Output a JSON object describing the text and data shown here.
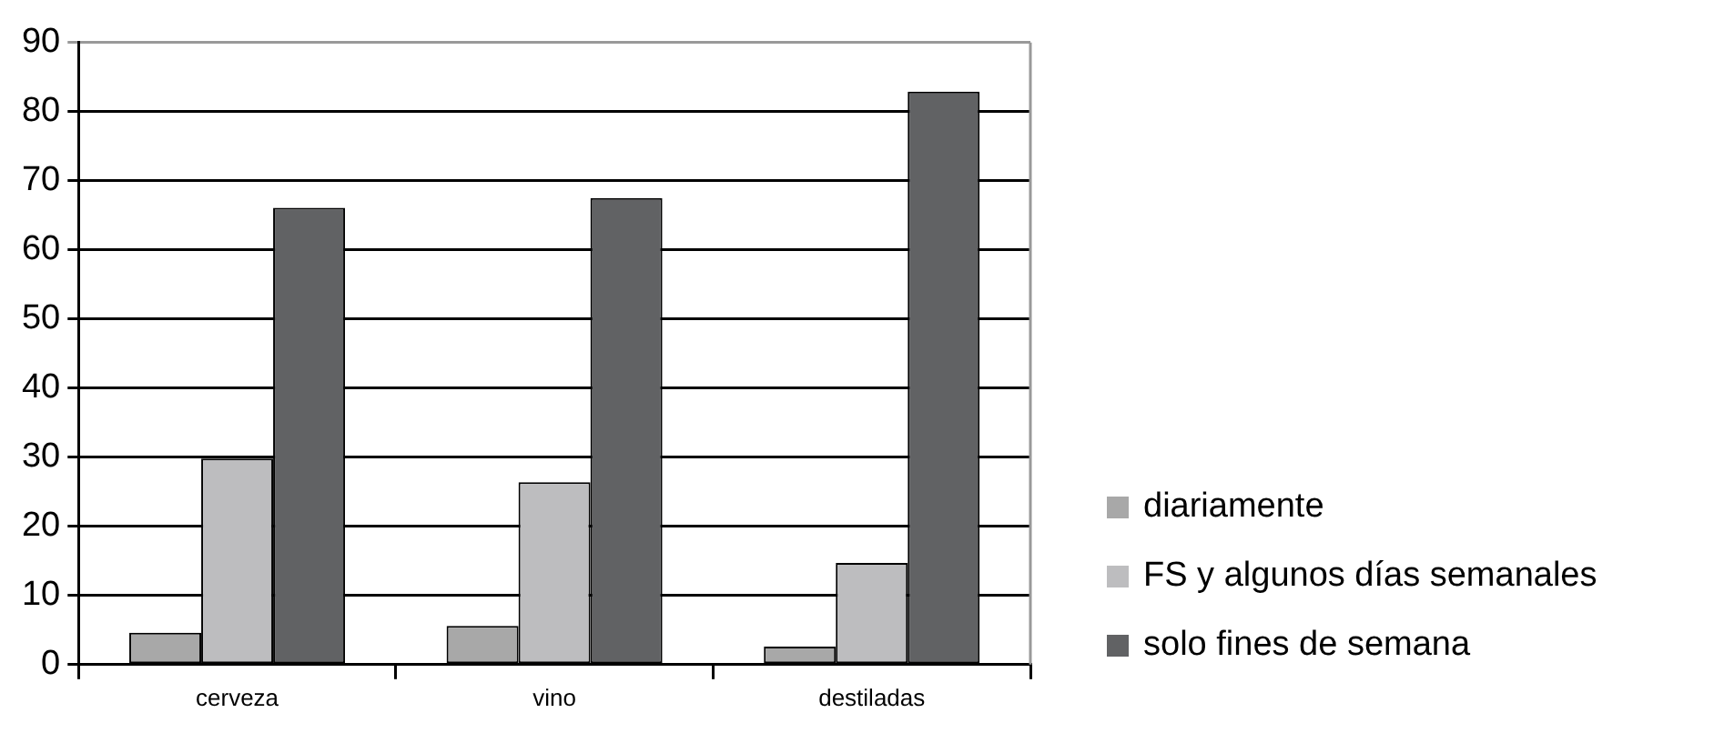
{
  "chart_data": {
    "type": "bar",
    "categories": [
      "cerveza",
      "vino",
      "destiladas"
    ],
    "series": [
      {
        "name": "diariamente",
        "color": "#a8a8a8",
        "values": [
          4.6,
          5.6,
          2.6
        ]
      },
      {
        "name": "FS y algunos días semanales",
        "color": "#bdbdbf",
        "values": [
          29.8,
          26.4,
          14.7
        ]
      },
      {
        "name": "solo fines de semana",
        "color": "#616264",
        "values": [
          66.1,
          67.5,
          82.9
        ]
      }
    ],
    "ylim": [
      0,
      90
    ],
    "yticks": [
      0,
      10,
      20,
      30,
      40,
      50,
      60,
      70,
      80,
      90
    ],
    "grid": "y",
    "legend": "right"
  }
}
